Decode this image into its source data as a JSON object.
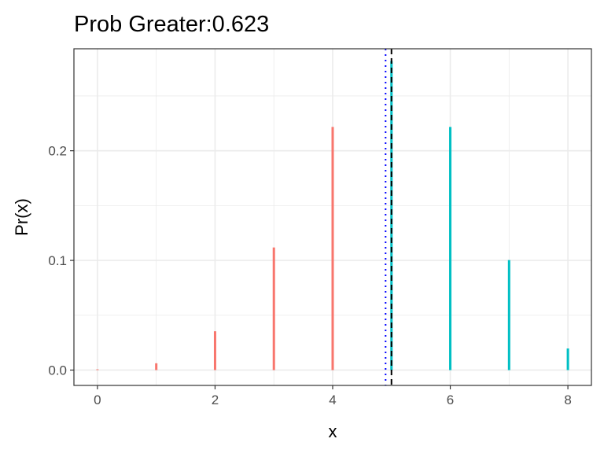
{
  "chart_data": {
    "type": "bar",
    "title": "Prob Greater:0.623",
    "xlabel": "x",
    "ylabel": "Pr(x)",
    "x": [
      0,
      1,
      2,
      3,
      4,
      5,
      6,
      7,
      8
    ],
    "values": [
      0.0007,
      0.0062,
      0.0354,
      0.1118,
      0.2217,
      0.2818,
      0.2217,
      0.1003,
      0.0197
    ],
    "xlim": [
      -0.4,
      8.4
    ],
    "ylim": [
      -0.014,
      0.293
    ],
    "x_ticks": [
      0,
      2,
      4,
      6,
      8
    ],
    "y_ticks": [
      0.0,
      0.1,
      0.2
    ],
    "x_tick_labels": [
      "0",
      "2",
      "4",
      "6",
      "8"
    ],
    "y_tick_labels": [
      "0.0",
      "0.1",
      "0.2"
    ],
    "threshold": 5,
    "mean": 4.9,
    "colors": {
      "below": "#F8766D",
      "above": "#00BFC4",
      "threshold_line": "#000000",
      "mean_line": "#0000FF",
      "grid": "#EBEBEB",
      "panel_border": "#333333"
    },
    "grid": true,
    "legend": "none"
  }
}
